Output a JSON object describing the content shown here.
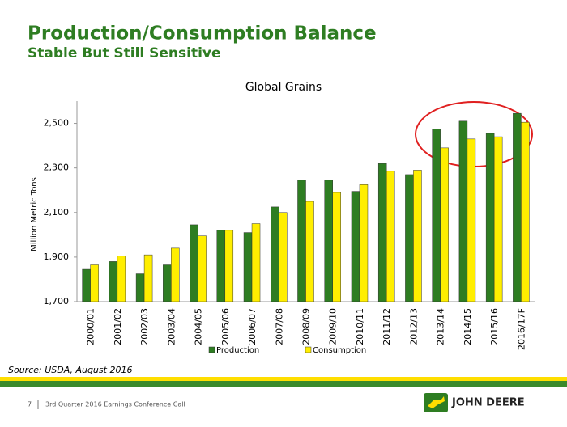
{
  "slide": {
    "title": "Production/Consumption Balance",
    "subtitle": "Stable But Still Sensitive",
    "source": "Source: USDA, August 2016",
    "page_number": "7",
    "footer": "3rd Quarter 2016 Earnings Conference Call",
    "logo_text": "JOHN DEERE"
  },
  "chart_data": {
    "type": "bar",
    "title": "Global Grains",
    "y_label": "Million Metric Tons",
    "categories": [
      "2000/01",
      "2001/02",
      "2002/03",
      "2003/04",
      "2004/05",
      "2005/06",
      "2006/07",
      "2007/08",
      "2008/09",
      "2009/10",
      "2010/11",
      "2011/12",
      "2012/13",
      "2013/14",
      "2014/15",
      "2015/16",
      "2016/17F"
    ],
    "series": [
      {
        "name": "Production",
        "color": "#2e7d22",
        "values": [
          1845,
          1880,
          1825,
          1865,
          2045,
          2020,
          2010,
          2125,
          2245,
          2245,
          2195,
          2320,
          2270,
          2475,
          2510,
          2455,
          2545
        ]
      },
      {
        "name": "Consumption",
        "color": "#ffee00",
        "values": [
          1865,
          1905,
          1910,
          1940,
          1995,
          2020,
          2050,
          2100,
          2150,
          2190,
          2225,
          2285,
          2290,
          2390,
          2430,
          2440,
          2505
        ]
      }
    ],
    "ylim": [
      1700,
      2600
    ],
    "yticks": [
      {
        "value": 1700,
        "label": "1,700"
      },
      {
        "value": 1900,
        "label": "1,900"
      },
      {
        "value": 2100,
        "label": "2,100"
      },
      {
        "value": 2300,
        "label": "2,300"
      },
      {
        "value": 2500,
        "label": "2,500"
      }
    ],
    "legend": "bottom"
  }
}
